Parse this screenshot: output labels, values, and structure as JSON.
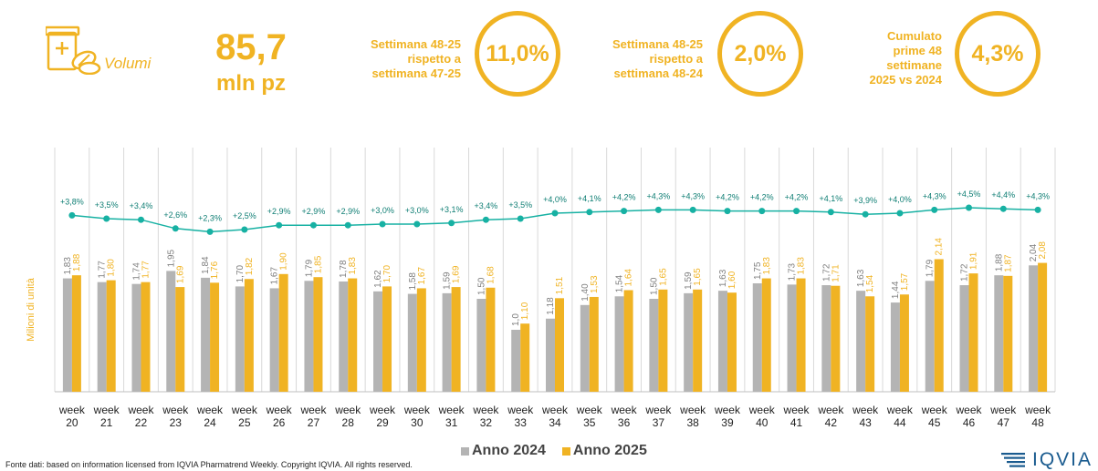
{
  "header": {
    "icon": "pill-box-icon",
    "label": "Volumi",
    "value": "85,7",
    "unit": "mln pz"
  },
  "kpis": [
    {
      "label": "Settimana 48-25\nrispetto a\nsettimana 47-25",
      "value": "11,0%"
    },
    {
      "label": "Settimana 48-25\nrispetto a\nsettimana 48-24",
      "value": "2,0%"
    },
    {
      "label": "Cumulato\nprime 48\nsettimane\n2025 vs 2024",
      "value": "4,3%"
    }
  ],
  "colors": {
    "accent": "#f0b323",
    "bar2024": "#b4b4b4",
    "bar2025": "#f0b323",
    "line": "#17b1a3"
  },
  "chart_data": {
    "type": "bar",
    "ylabel": "Milioni di unità",
    "categories": [
      "week 20",
      "week 21",
      "week 22",
      "week 23",
      "week 24",
      "week 25",
      "week 26",
      "week 27",
      "week 28",
      "week 29",
      "week 30",
      "week 31",
      "week 32",
      "week 33",
      "week 34",
      "week 35",
      "week 36",
      "week 37",
      "week 38",
      "week 39",
      "week 40",
      "week 41",
      "week 42",
      "week 43",
      "week 44",
      "week 45",
      "week 46",
      "week 47",
      "week 48"
    ],
    "series": [
      {
        "name": "Anno 2024",
        "values": [
          1.83,
          1.77,
          1.74,
          1.95,
          1.84,
          1.7,
          1.67,
          1.79,
          1.78,
          1.62,
          1.58,
          1.59,
          1.5,
          1.0,
          1.18,
          1.4,
          1.54,
          1.5,
          1.59,
          1.63,
          1.75,
          1.73,
          1.72,
          1.63,
          1.44,
          1.79,
          1.72,
          1.88,
          2.04
        ],
        "labels": [
          "1,83",
          "1,77",
          "1,74",
          "1,95",
          "1,84",
          "1,70",
          "1,67",
          "1,79",
          "1,78",
          "1,62",
          "1,58",
          "1,59",
          "1,50",
          "1,0",
          "1,18",
          "1,40",
          "1,54",
          "1,50",
          "1,59",
          "1,63",
          "1,75",
          "1,73",
          "1,72",
          "1,63",
          "1,44",
          "1,79",
          "1,72",
          "1,88",
          "2,04"
        ]
      },
      {
        "name": "Anno 2025",
        "values": [
          1.88,
          1.8,
          1.77,
          1.69,
          1.76,
          1.82,
          1.9,
          1.85,
          1.83,
          1.7,
          1.67,
          1.69,
          1.68,
          1.1,
          1.51,
          1.53,
          1.64,
          1.65,
          1.65,
          1.6,
          1.83,
          1.83,
          1.71,
          1.54,
          1.57,
          2.14,
          1.91,
          1.87,
          2.08
        ],
        "labels": [
          "1,88",
          "1,80",
          "1,77",
          "1,69",
          "1,76",
          "1,82",
          "1,90",
          "1,85",
          "1,83",
          "1,70",
          "1,67",
          "1,69",
          "1,68",
          "1,10",
          "1,51",
          "1,53",
          "1,64",
          "1,65",
          "1,65",
          "1,60",
          "1,83",
          "1,83",
          "1,71",
          "1,54",
          "1,57",
          "2,14",
          "1,91",
          "1,87",
          "2,08"
        ]
      }
    ],
    "line_series": {
      "values": [
        3.8,
        3.5,
        3.4,
        2.6,
        2.3,
        2.5,
        2.9,
        2.9,
        2.9,
        3.0,
        3.0,
        3.1,
        3.4,
        3.5,
        4.0,
        4.1,
        4.2,
        4.3,
        4.3,
        4.2,
        4.2,
        4.2,
        4.1,
        3.9,
        4.0,
        4.3,
        4.5,
        4.4,
        4.3
      ],
      "labels": [
        "+3,8%",
        "+3,5%",
        "+3,4%",
        "+2,6%",
        "+2,3%",
        "+2,5%",
        "+2,9%",
        "+2,9%",
        "+2,9%",
        "+3,0%",
        "+3,0%",
        "+3,1%",
        "+3,4%",
        "+3,5%",
        "+4,0%",
        "+4,1%",
        "+4,2%",
        "+4,3%",
        "+4,3%",
        "+4,2%",
        "+4,2%",
        "+4,2%",
        "+4,1%",
        "+3,9%",
        "+4,0%",
        "+4,3%",
        "+4,5%",
        "+4,4%",
        "+4,3%"
      ]
    },
    "ylim": [
      0,
      2.5
    ],
    "grid": false,
    "legend": "bottom"
  },
  "legend": [
    {
      "label": "Anno 2024"
    },
    {
      "label": "Anno 2025"
    }
  ],
  "source": "Fonte dati: based on information licensed from IQVIA Pharmatrend Weekly. Copyright IQVIA. All rights reserved.",
  "logo": {
    "text": "IQVIA"
  }
}
